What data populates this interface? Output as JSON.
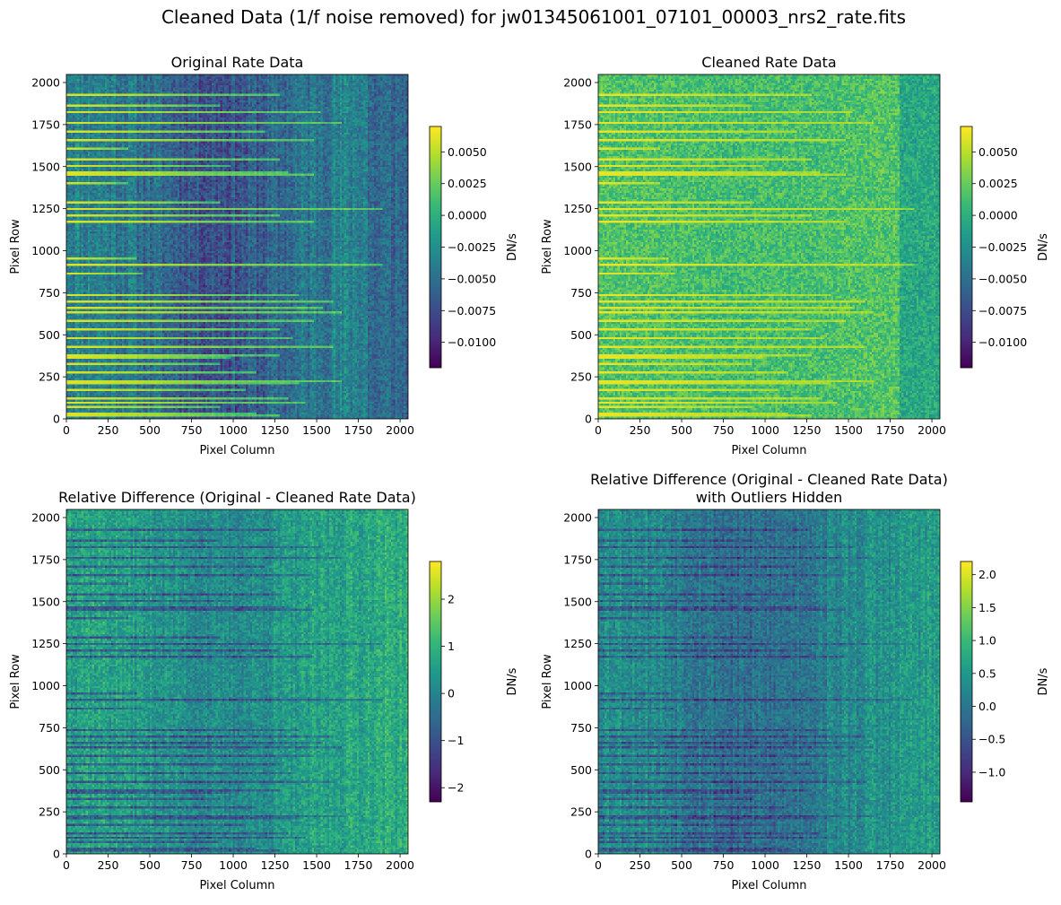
{
  "figure": {
    "suptitle": "Cleaned Data (1/f noise removed) for jw01345061001_07101_00003_nrs2_rate.fits"
  },
  "colors": {
    "colormap": "viridis",
    "viridis_stops": [
      "#440154",
      "#482878",
      "#3e4989",
      "#31688e",
      "#26828e",
      "#1f9e89",
      "#35b779",
      "#6ece58",
      "#b5de2b",
      "#fde725"
    ],
    "axis": "#000000",
    "background": "#ffffff"
  },
  "chart_data": [
    {
      "type": "heatmap",
      "title_lines": [
        "Original Rate Data"
      ],
      "xlabel": "Pixel Column",
      "ylabel": "Pixel Row",
      "xlim": [
        0,
        2048
      ],
      "ylim": [
        0,
        2048
      ],
      "xticks": [
        "0",
        "250",
        "500",
        "750",
        "1000",
        "1250",
        "1500",
        "1750",
        "2000"
      ],
      "yticks": [
        "0",
        "250",
        "500",
        "750",
        "1000",
        "1250",
        "1500",
        "1750",
        "2000"
      ],
      "colorbar": {
        "label": "DN/s",
        "vmin": -0.012,
        "vmax": 0.007,
        "ticks": [
          -0.01,
          -0.0075,
          -0.005,
          -0.0025,
          0.0,
          0.0025,
          0.005
        ],
        "tick_labels": [
          "−0.0100",
          "−0.0075",
          "−0.0050",
          "−0.0025",
          "0.0000",
          "0.0025",
          "0.0050"
        ]
      },
      "image": {
        "mode": "rate",
        "base_level": 0.46,
        "column_banding": 0.2,
        "spectra_brightness": 0.95,
        "seed": 11
      }
    },
    {
      "type": "heatmap",
      "title_lines": [
        "Cleaned Rate Data"
      ],
      "xlabel": "Pixel Column",
      "ylabel": "Pixel Row",
      "xlim": [
        0,
        2048
      ],
      "ylim": [
        0,
        2048
      ],
      "xticks": [
        "0",
        "250",
        "500",
        "750",
        "1000",
        "1250",
        "1500",
        "1750",
        "2000"
      ],
      "yticks": [
        "0",
        "250",
        "500",
        "750",
        "1000",
        "1250",
        "1500",
        "1750",
        "2000"
      ],
      "colorbar": {
        "label": "DN/s",
        "vmin": -0.012,
        "vmax": 0.007,
        "ticks": [
          -0.01,
          -0.0075,
          -0.005,
          -0.0025,
          0.0,
          0.0025,
          0.005
        ],
        "tick_labels": [
          "−0.0100",
          "−0.0075",
          "−0.0050",
          "−0.0025",
          "0.0000",
          "0.0025",
          "0.0050"
        ]
      },
      "image": {
        "mode": "rate",
        "base_level": 0.72,
        "column_banding": 0.03,
        "spectra_brightness": 0.97,
        "seed": 23
      }
    },
    {
      "type": "heatmap",
      "title_lines": [
        "Relative Difference (Original - Cleaned Rate Data)"
      ],
      "xlabel": "Pixel Column",
      "ylabel": "Pixel Row",
      "xlim": [
        0,
        2048
      ],
      "ylim": [
        0,
        2048
      ],
      "xticks": [
        "0",
        "250",
        "500",
        "750",
        "1000",
        "1250",
        "1500",
        "1750",
        "2000"
      ],
      "yticks": [
        "0",
        "250",
        "500",
        "750",
        "1000",
        "1250",
        "1500",
        "1750",
        "2000"
      ],
      "colorbar": {
        "label": "DN/s",
        "vmin": -2.3,
        "vmax": 2.8,
        "ticks": [
          -2,
          -1,
          0,
          1,
          2
        ],
        "tick_labels": [
          "−2",
          "−1",
          "0",
          "1",
          "2"
        ]
      },
      "image": {
        "mode": "diff",
        "base_level": 0.6,
        "column_banding": 0.12,
        "spectra_brightness": 0.3,
        "seed": 37
      }
    },
    {
      "type": "heatmap",
      "title_lines": [
        "Relative Difference (Original - Cleaned Rate Data)",
        "with Outliers Hidden"
      ],
      "xlabel": "Pixel Column",
      "ylabel": "Pixel Row",
      "xlim": [
        0,
        2048
      ],
      "ylim": [
        0,
        2048
      ],
      "xticks": [
        "0",
        "250",
        "500",
        "750",
        "1000",
        "1250",
        "1500",
        "1750",
        "2000"
      ],
      "yticks": [
        "0",
        "250",
        "500",
        "750",
        "1000",
        "1250",
        "1500",
        "1750",
        "2000"
      ],
      "colorbar": {
        "label": "DN/s",
        "vmin": -1.45,
        "vmax": 2.2,
        "ticks": [
          -1.0,
          -0.5,
          0.0,
          0.5,
          1.0,
          1.5,
          2.0
        ],
        "tick_labels": [
          "−1.0",
          "−0.5",
          "0.0",
          "0.5",
          "1.0",
          "1.5",
          "2.0"
        ]
      },
      "image": {
        "mode": "diff",
        "base_level": 0.52,
        "column_banding": 0.16,
        "spectra_brightness": 0.22,
        "seed": 53
      }
    }
  ]
}
